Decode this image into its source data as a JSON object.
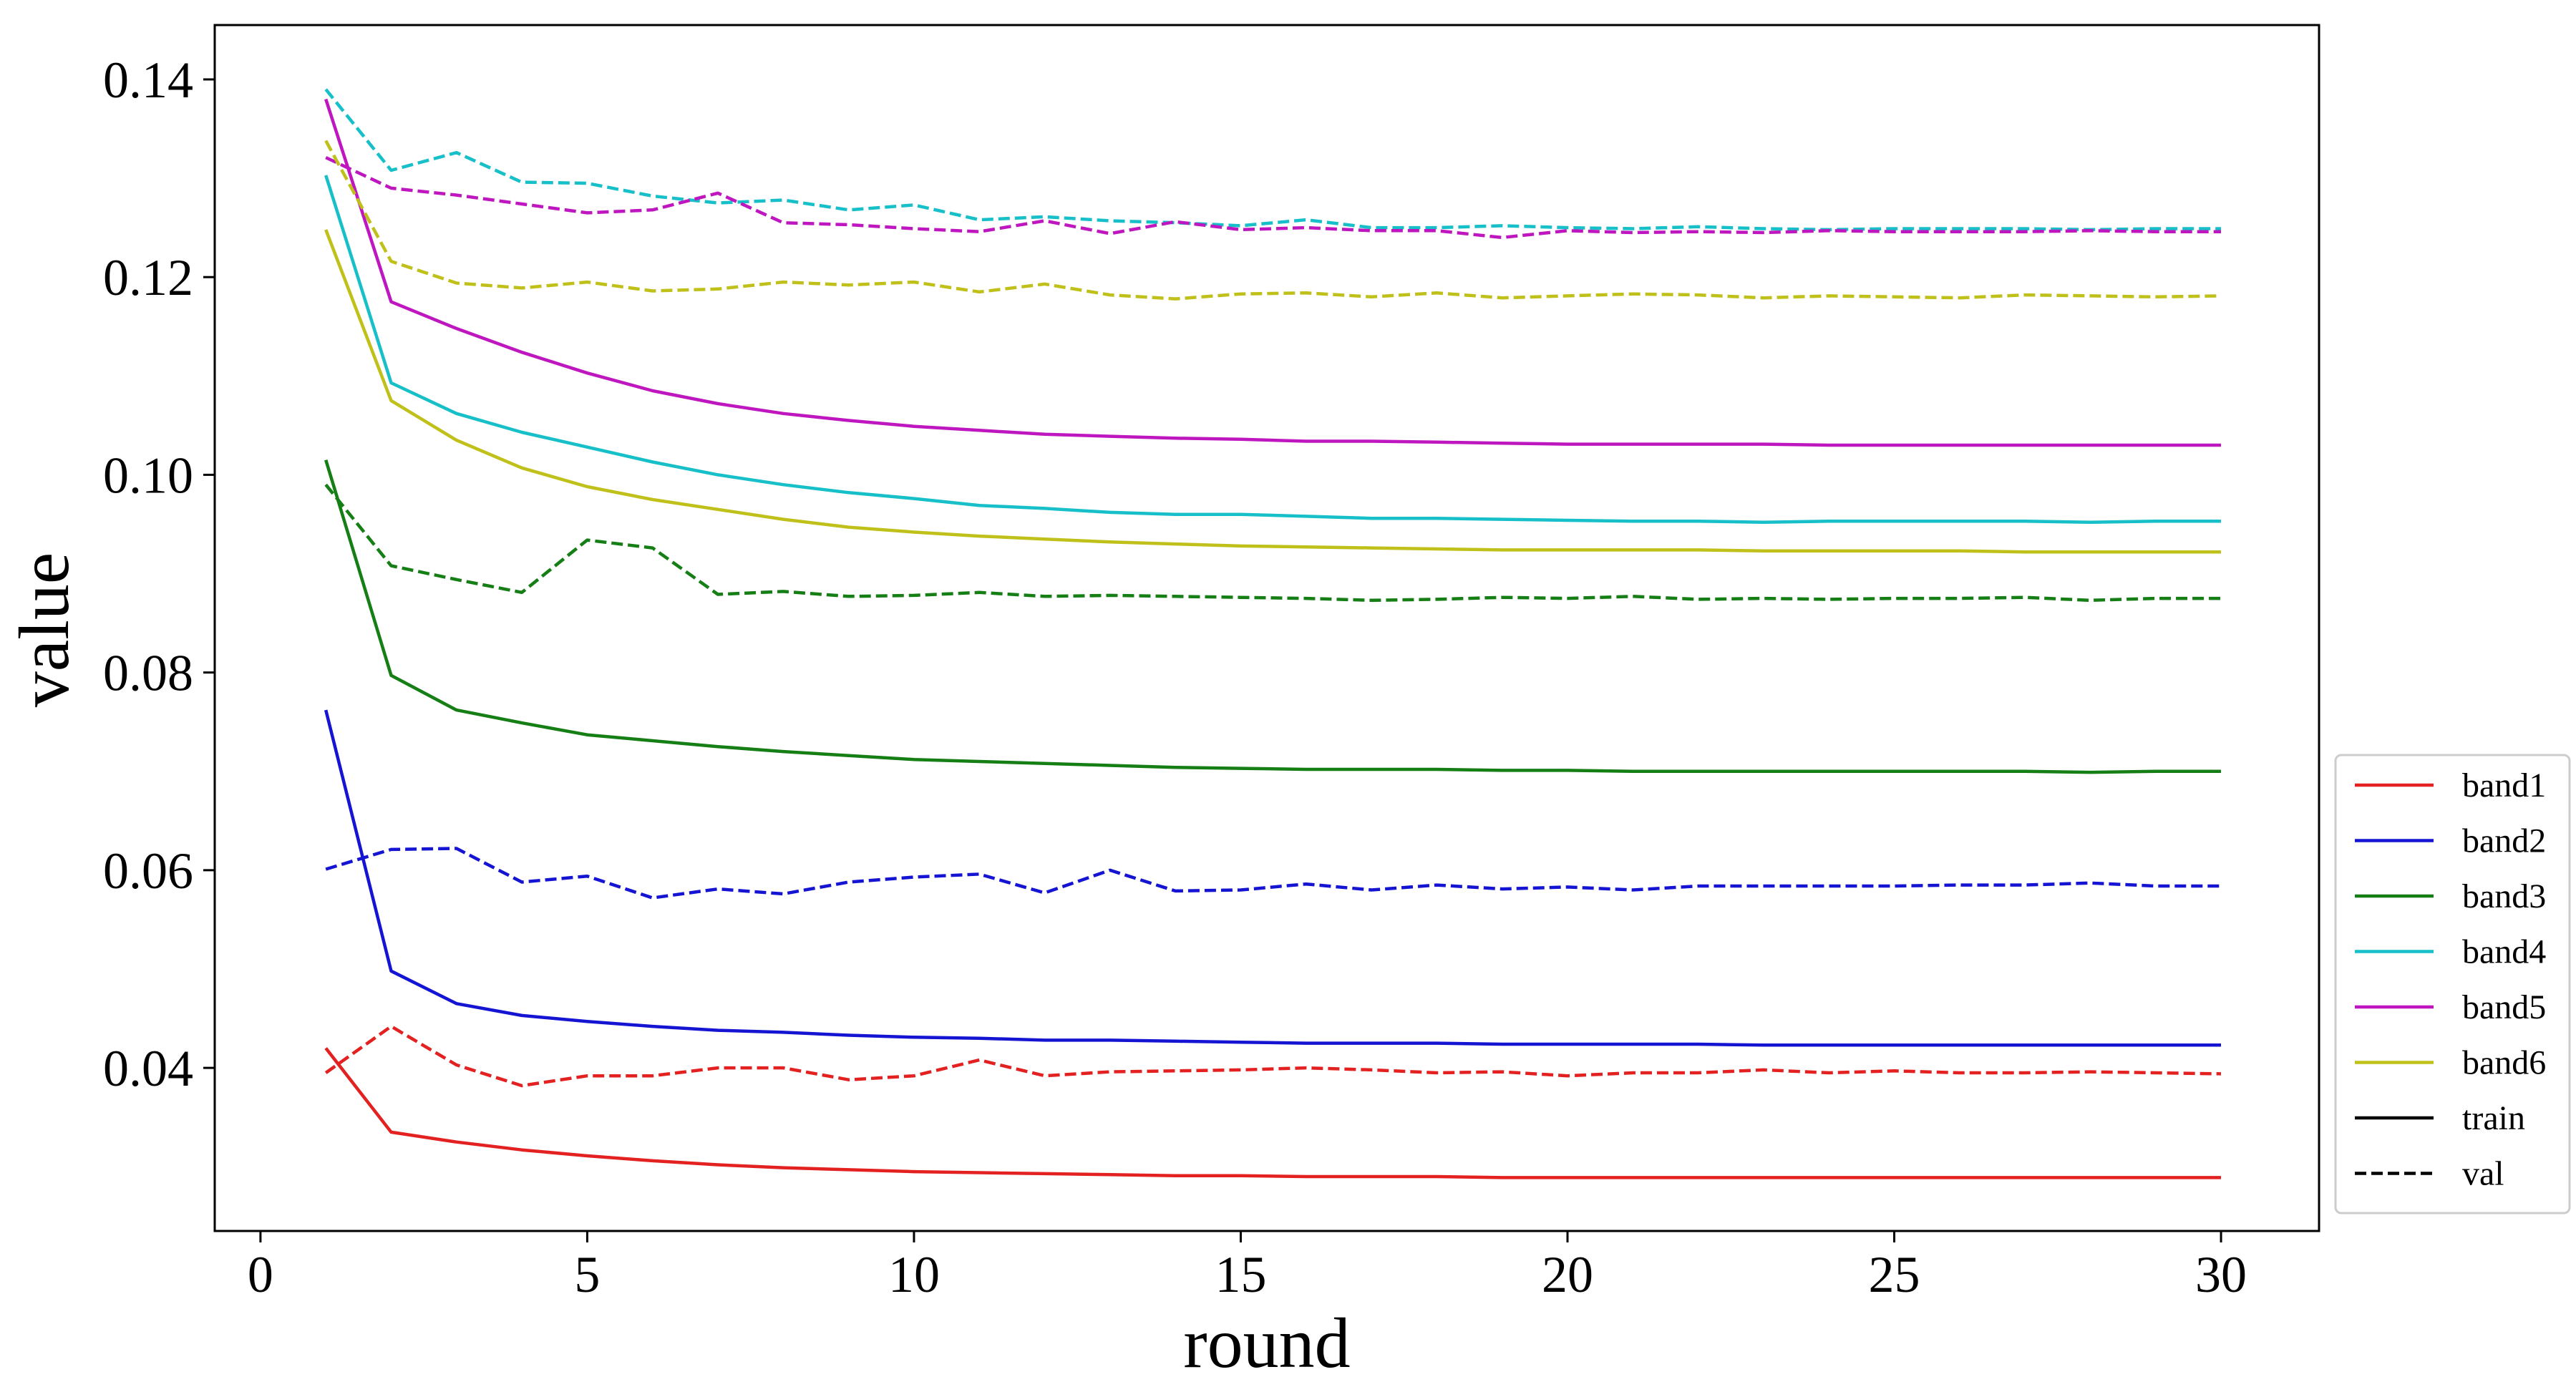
{
  "chart_data": {
    "type": "line",
    "title": "",
    "xlabel": "round",
    "ylabel": "value",
    "xlim": [
      -0.7,
      31.5
    ],
    "ylim": [
      0.0235,
      0.1455
    ],
    "x_ticks": [
      0,
      5,
      10,
      15,
      20,
      25,
      30
    ],
    "x_tick_labels": [
      "0",
      "5",
      "10",
      "15",
      "20",
      "25",
      "30"
    ],
    "y_ticks": [
      0.04,
      0.06,
      0.08,
      0.1,
      0.12,
      0.14
    ],
    "y_tick_labels": [
      "0.04",
      "0.06",
      "0.08",
      "0.10",
      "0.12",
      "0.14"
    ],
    "grid": false,
    "legend_position": "outside-right-bottom",
    "x": [
      1,
      2,
      3,
      4,
      5,
      6,
      7,
      8,
      9,
      10,
      11,
      12,
      13,
      14,
      15,
      16,
      17,
      18,
      19,
      20,
      21,
      22,
      23,
      24,
      25,
      26,
      27,
      28,
      29,
      30
    ],
    "series": [
      {
        "name": "band1 train",
        "band": "band1",
        "color": "#e32121",
        "style": "solid",
        "values": [
          0.042,
          0.0335,
          0.0325,
          0.0317,
          0.0311,
          0.0306,
          0.0302,
          0.0299,
          0.0297,
          0.0295,
          0.0294,
          0.0293,
          0.0292,
          0.0291,
          0.0291,
          0.029,
          0.029,
          0.029,
          0.0289,
          0.0289,
          0.0289,
          0.0289,
          0.0289,
          0.0289,
          0.0289,
          0.0289,
          0.0289,
          0.0289,
          0.0289,
          0.0289
        ]
      },
      {
        "name": "band1 val",
        "band": "band1",
        "color": "#e32121",
        "style": "dashed",
        "values": [
          0.0395,
          0.0442,
          0.0403,
          0.0382,
          0.0392,
          0.0392,
          0.04,
          0.04,
          0.0388,
          0.0392,
          0.0408,
          0.0392,
          0.0396,
          0.0397,
          0.0398,
          0.04,
          0.0398,
          0.0395,
          0.0396,
          0.0392,
          0.0395,
          0.0395,
          0.0398,
          0.0395,
          0.0397,
          0.0395,
          0.0395,
          0.0396,
          0.0395,
          0.0394
        ]
      },
      {
        "name": "band2 train",
        "band": "band2",
        "color": "#1414d2",
        "style": "solid",
        "values": [
          0.0762,
          0.0498,
          0.0465,
          0.0453,
          0.0447,
          0.0442,
          0.0438,
          0.0436,
          0.0433,
          0.0431,
          0.043,
          0.0428,
          0.0428,
          0.0427,
          0.0426,
          0.0425,
          0.0425,
          0.0425,
          0.0424,
          0.0424,
          0.0424,
          0.0424,
          0.0423,
          0.0423,
          0.0423,
          0.0423,
          0.0423,
          0.0423,
          0.0423,
          0.0423
        ]
      },
      {
        "name": "band2 val",
        "band": "band2",
        "color": "#1414d2",
        "style": "dashed",
        "values": [
          0.0601,
          0.0621,
          0.0622,
          0.0588,
          0.0594,
          0.0572,
          0.0581,
          0.0576,
          0.0588,
          0.0593,
          0.0596,
          0.0577,
          0.06,
          0.0579,
          0.058,
          0.0586,
          0.058,
          0.0585,
          0.0581,
          0.0583,
          0.058,
          0.0584,
          0.0584,
          0.0584,
          0.0584,
          0.0585,
          0.0585,
          0.0587,
          0.0584,
          0.0584
        ]
      },
      {
        "name": "band3 train",
        "band": "band3",
        "color": "#157e15",
        "style": "solid",
        "values": [
          0.1015,
          0.0797,
          0.0762,
          0.0749,
          0.0737,
          0.0731,
          0.0725,
          0.072,
          0.0716,
          0.0712,
          0.071,
          0.0708,
          0.0706,
          0.0704,
          0.0703,
          0.0702,
          0.0702,
          0.0702,
          0.0701,
          0.0701,
          0.07,
          0.07,
          0.07,
          0.07,
          0.07,
          0.07,
          0.07,
          0.0699,
          0.07,
          0.07
        ]
      },
      {
        "name": "band3 val",
        "band": "band3",
        "color": "#157e15",
        "style": "dashed",
        "values": [
          0.099,
          0.0908,
          0.0894,
          0.0881,
          0.0934,
          0.0926,
          0.0879,
          0.0882,
          0.0877,
          0.0878,
          0.0881,
          0.0877,
          0.0878,
          0.0877,
          0.0876,
          0.0875,
          0.0873,
          0.0874,
          0.0876,
          0.0875,
          0.0877,
          0.0874,
          0.0875,
          0.0874,
          0.0875,
          0.0875,
          0.0876,
          0.0873,
          0.0875,
          0.0875
        ]
      },
      {
        "name": "band4 train",
        "band": "band4",
        "color": "#17bfc9",
        "style": "solid",
        "values": [
          0.1303,
          0.1093,
          0.1062,
          0.1043,
          0.1028,
          0.1013,
          0.1,
          0.099,
          0.0982,
          0.0976,
          0.0969,
          0.0966,
          0.0962,
          0.096,
          0.096,
          0.0958,
          0.0956,
          0.0956,
          0.0955,
          0.0954,
          0.0953,
          0.0953,
          0.0952,
          0.0953,
          0.0953,
          0.0953,
          0.0953,
          0.0952,
          0.0953,
          0.0953
        ]
      },
      {
        "name": "band4 val",
        "band": "band4",
        "color": "#17bfc9",
        "style": "dashed",
        "values": [
          0.139,
          0.1308,
          0.1326,
          0.1296,
          0.1295,
          0.1282,
          0.1275,
          0.1278,
          0.1268,
          0.1273,
          0.1258,
          0.1261,
          0.1257,
          0.1255,
          0.1252,
          0.1258,
          0.125,
          0.125,
          0.1252,
          0.125,
          0.1249,
          0.1251,
          0.1249,
          0.1248,
          0.1249,
          0.1249,
          0.1249,
          0.1248,
          0.1249,
          0.1249
        ]
      },
      {
        "name": "band5 train",
        "band": "band5",
        "color": "#bf17bf",
        "style": "solid",
        "values": [
          0.138,
          0.1175,
          0.1148,
          0.1124,
          0.1103,
          0.1085,
          0.1072,
          0.1062,
          0.1055,
          0.1049,
          0.1045,
          0.1041,
          0.1039,
          0.1037,
          0.1036,
          0.1034,
          0.1034,
          0.1033,
          0.1032,
          0.1031,
          0.1031,
          0.1031,
          0.1031,
          0.103,
          0.103,
          0.103,
          0.103,
          0.103,
          0.103,
          0.103
        ]
      },
      {
        "name": "band5 val",
        "band": "band5",
        "color": "#bf17bf",
        "style": "dashed",
        "values": [
          0.1321,
          0.129,
          0.1283,
          0.1274,
          0.1265,
          0.1268,
          0.1285,
          0.1255,
          0.1253,
          0.1249,
          0.1246,
          0.1257,
          0.1244,
          0.1256,
          0.1248,
          0.125,
          0.1247,
          0.1247,
          0.124,
          0.1247,
          0.1245,
          0.1246,
          0.1245,
          0.1247,
          0.1246,
          0.1246,
          0.1246,
          0.1247,
          0.1246,
          0.1246
        ]
      },
      {
        "name": "band6 train",
        "band": "band6",
        "color": "#c0c01a",
        "style": "solid",
        "values": [
          0.1248,
          0.1075,
          0.1035,
          0.1007,
          0.0988,
          0.0975,
          0.0965,
          0.0955,
          0.0947,
          0.0942,
          0.0938,
          0.0935,
          0.0932,
          0.093,
          0.0928,
          0.0927,
          0.0926,
          0.0925,
          0.0924,
          0.0924,
          0.0924,
          0.0924,
          0.0923,
          0.0923,
          0.0923,
          0.0923,
          0.0922,
          0.0922,
          0.0922,
          0.0922
        ]
      },
      {
        "name": "band6 val",
        "band": "band6",
        "color": "#c0c01a",
        "style": "dashed",
        "values": [
          0.1338,
          0.1216,
          0.1194,
          0.1189,
          0.1195,
          0.1186,
          0.1188,
          0.1195,
          0.1192,
          0.1195,
          0.1185,
          0.1193,
          0.1182,
          0.1178,
          0.1183,
          0.1184,
          0.118,
          0.1184,
          0.1179,
          0.1181,
          0.1183,
          0.1182,
          0.1179,
          0.1181,
          0.118,
          0.1179,
          0.1182,
          0.1181,
          0.118,
          0.1181
        ]
      }
    ],
    "legend": [
      {
        "label": "band1",
        "color": "#e32121",
        "style": "solid"
      },
      {
        "label": "band2",
        "color": "#1414d2",
        "style": "solid"
      },
      {
        "label": "band3",
        "color": "#157e15",
        "style": "solid"
      },
      {
        "label": "band4",
        "color": "#17bfc9",
        "style": "solid"
      },
      {
        "label": "band5",
        "color": "#bf17bf",
        "style": "solid"
      },
      {
        "label": "band6",
        "color": "#c0c01a",
        "style": "solid"
      },
      {
        "label": "train",
        "color": "#000000",
        "style": "solid"
      },
      {
        "label": "val",
        "color": "#000000",
        "style": "dashed"
      }
    ]
  }
}
